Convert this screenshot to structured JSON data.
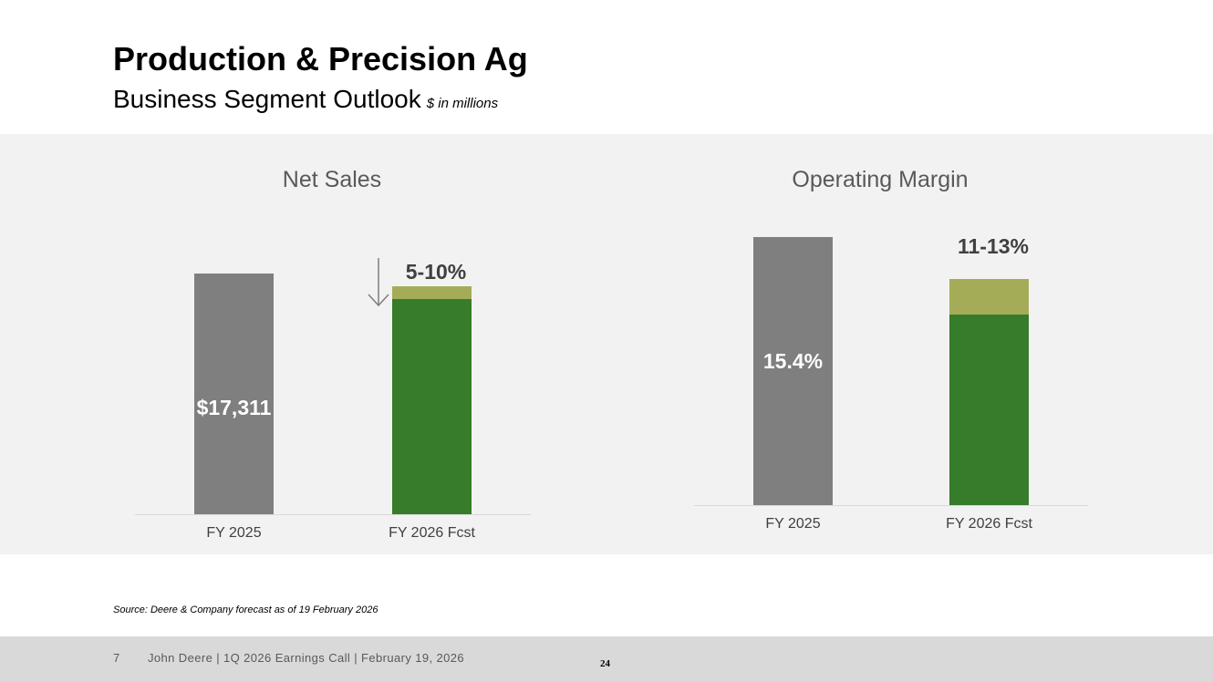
{
  "header": {
    "title": "Production & Precision Ag",
    "subtitle": "Business Segment Outlook",
    "units": "$ in millions"
  },
  "chart_data": [
    {
      "type": "bar",
      "title": "Net Sales",
      "categories": [
        "FY 2025",
        "FY 2026 Fcst"
      ],
      "values": [
        17311,
        null
      ],
      "value_labels": [
        "$17,311",
        ""
      ],
      "forecast_change_label": "5-10%",
      "forecast_direction": "down",
      "forecast_change_range_pct": [
        -10,
        -5
      ],
      "colors": {
        "actual": "#7f7f7f",
        "forecast": "#367c2b",
        "range": "#a5ac58"
      }
    },
    {
      "type": "bar",
      "title": "Operating Margin",
      "categories": [
        "FY 2025",
        "FY 2026 Fcst"
      ],
      "values": [
        15.4,
        null
      ],
      "value_labels": [
        "15.4%",
        ""
      ],
      "forecast_range_label": "11-13%",
      "forecast_range_pct": [
        11,
        13
      ],
      "colors": {
        "actual": "#7f7f7f",
        "forecast": "#367c2b",
        "range": "#a5ac58"
      }
    }
  ],
  "source": "Source: Deere & Company forecast as of 19 February 2026",
  "footer": {
    "page": "7",
    "text": "John Deere | 1Q 2026 Earnings Call | February 19, 2026",
    "slide_number": "24"
  }
}
